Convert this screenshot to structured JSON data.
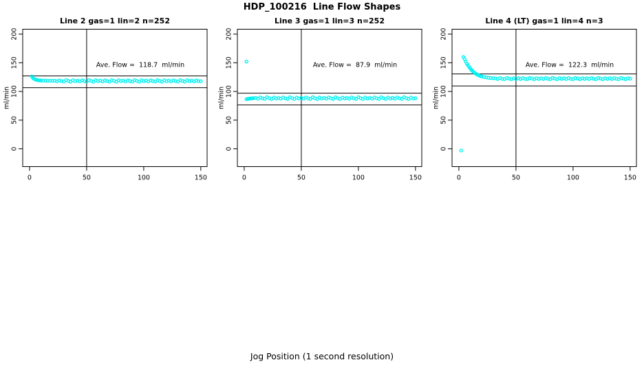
{
  "page_title": "HDP_100216  Line Flow Shapes",
  "x_axis_label": "Jog Position (1 second resolution)",
  "colors": {
    "points": "#00F2F2",
    "axis": "#000000",
    "background": "#FFFFFF"
  },
  "chart_data": [
    {
      "type": "scatter",
      "title": "Line 2 gas=1 lin=2 n=252",
      "annotation": "Ave. Flow =  118.7  ml/min",
      "ave_flow_ml_min": 118.7,
      "n": 252,
      "ylabel": "ml/min",
      "x_ticks": [
        0,
        50,
        100,
        150
      ],
      "y_ticks": [
        0,
        50,
        100,
        150,
        200
      ],
      "xlim": [
        -6,
        155.5
      ],
      "ylim": [
        -31,
        208.5
      ],
      "grid": false,
      "vline_x": 50,
      "ref_lines": [
        127,
        106.5
      ],
      "points": [
        [
          2,
          126
        ],
        [
          3,
          123.5
        ],
        [
          4,
          121.8
        ],
        [
          5,
          121
        ],
        [
          6,
          120.3
        ],
        [
          7,
          119.9
        ],
        [
          8,
          119.4
        ],
        [
          9,
          119.2
        ],
        [
          10,
          119
        ],
        [
          12,
          118.8
        ],
        [
          14,
          118.9
        ],
        [
          16,
          118.6
        ],
        [
          18,
          118.8
        ],
        [
          20,
          118.5
        ],
        [
          22,
          118.9
        ],
        [
          24,
          117.6
        ],
        [
          26,
          119.3
        ],
        [
          28,
          118.1
        ],
        [
          30,
          117.2
        ],
        [
          32,
          119.8
        ],
        [
          34,
          118.4
        ],
        [
          36,
          116.9
        ],
        [
          38,
          119.6
        ],
        [
          40,
          118
        ],
        [
          42,
          118.9
        ],
        [
          44,
          117.6
        ],
        [
          46,
          119.3
        ],
        [
          48,
          118.1
        ],
        [
          50,
          117.2
        ],
        [
          52,
          119.8
        ],
        [
          54,
          118.4
        ],
        [
          56,
          116.9
        ],
        [
          58,
          119.6
        ],
        [
          60,
          118
        ],
        [
          62,
          118.9
        ],
        [
          64,
          117.6
        ],
        [
          66,
          119.3
        ],
        [
          68,
          118.1
        ],
        [
          70,
          117.2
        ],
        [
          72,
          119.8
        ],
        [
          74,
          118.4
        ],
        [
          76,
          116.9
        ],
        [
          78,
          119.6
        ],
        [
          80,
          118
        ],
        [
          82,
          118.9
        ],
        [
          84,
          117.6
        ],
        [
          86,
          119.3
        ],
        [
          88,
          118.1
        ],
        [
          90,
          117.2
        ],
        [
          92,
          119.8
        ],
        [
          94,
          118.4
        ],
        [
          96,
          116.9
        ],
        [
          98,
          119.6
        ],
        [
          100,
          118
        ],
        [
          102,
          118.9
        ],
        [
          104,
          117.6
        ],
        [
          106,
          119.3
        ],
        [
          108,
          118.1
        ],
        [
          110,
          117.2
        ],
        [
          112,
          119.8
        ],
        [
          114,
          118.4
        ],
        [
          116,
          116.9
        ],
        [
          118,
          119.6
        ],
        [
          120,
          118
        ],
        [
          122,
          118.9
        ],
        [
          124,
          117.6
        ],
        [
          126,
          119.3
        ],
        [
          128,
          118.1
        ],
        [
          130,
          117.2
        ],
        [
          132,
          119.8
        ],
        [
          134,
          118.4
        ],
        [
          136,
          116.9
        ],
        [
          138,
          119.6
        ],
        [
          140,
          118
        ],
        [
          142,
          118.9
        ],
        [
          144,
          117.6
        ],
        [
          146,
          119.3
        ],
        [
          148,
          118.1
        ],
        [
          150,
          117.8
        ]
      ]
    },
    {
      "type": "scatter",
      "title": "Line 3 gas=1 lin=3 n=252",
      "annotation": "Ave. Flow =  87.9  ml/min",
      "ave_flow_ml_min": 87.9,
      "n": 252,
      "ylabel": "ml/min",
      "x_ticks": [
        0,
        50,
        100,
        150
      ],
      "y_ticks": [
        0,
        50,
        100,
        150,
        200
      ],
      "xlim": [
        -6,
        155.5
      ],
      "ylim": [
        -31,
        208.5
      ],
      "grid": false,
      "vline_x": 50,
      "ref_lines": [
        97,
        76.5
      ],
      "points": [
        [
          2,
          152
        ],
        [
          2,
          86.5
        ],
        [
          3,
          87
        ],
        [
          4,
          87.3
        ],
        [
          5,
          87.6
        ],
        [
          6,
          87.8
        ],
        [
          7,
          88
        ],
        [
          8,
          88.1
        ],
        [
          10,
          88.8
        ],
        [
          12,
          87.4
        ],
        [
          14,
          89.6
        ],
        [
          16,
          88
        ],
        [
          18,
          86.9
        ],
        [
          20,
          89.9
        ],
        [
          22,
          88.3
        ],
        [
          24,
          86.8
        ],
        [
          26,
          89.4
        ],
        [
          28,
          87.7
        ],
        [
          30,
          88.8
        ],
        [
          32,
          87.4
        ],
        [
          34,
          89.6
        ],
        [
          36,
          88
        ],
        [
          38,
          86.9
        ],
        [
          40,
          89.9
        ],
        [
          42,
          88.3
        ],
        [
          44,
          86.8
        ],
        [
          46,
          89.4
        ],
        [
          48,
          87.7
        ],
        [
          50,
          88.8
        ],
        [
          52,
          87.4
        ],
        [
          54,
          89.6
        ],
        [
          56,
          88
        ],
        [
          58,
          86.9
        ],
        [
          60,
          89.9
        ],
        [
          62,
          88.3
        ],
        [
          64,
          86.8
        ],
        [
          66,
          89.4
        ],
        [
          68,
          87.7
        ],
        [
          70,
          88.8
        ],
        [
          72,
          87.4
        ],
        [
          74,
          89.6
        ],
        [
          76,
          88
        ],
        [
          78,
          86.9
        ],
        [
          80,
          89.9
        ],
        [
          82,
          88.3
        ],
        [
          84,
          86.8
        ],
        [
          86,
          89.4
        ],
        [
          88,
          87.7
        ],
        [
          90,
          88.8
        ],
        [
          92,
          87.4
        ],
        [
          94,
          89.6
        ],
        [
          96,
          88
        ],
        [
          98,
          86.9
        ],
        [
          100,
          89.9
        ],
        [
          102,
          88.3
        ],
        [
          104,
          86.8
        ],
        [
          106,
          89.4
        ],
        [
          108,
          87.7
        ],
        [
          110,
          88.8
        ],
        [
          112,
          87.4
        ],
        [
          114,
          89.6
        ],
        [
          116,
          88
        ],
        [
          118,
          86.9
        ],
        [
          120,
          89.9
        ],
        [
          122,
          88.3
        ],
        [
          124,
          86.8
        ],
        [
          126,
          89.4
        ],
        [
          128,
          87.7
        ],
        [
          130,
          88.8
        ],
        [
          132,
          87.4
        ],
        [
          134,
          89.6
        ],
        [
          136,
          88
        ],
        [
          138,
          86.9
        ],
        [
          140,
          89.9
        ],
        [
          142,
          88.3
        ],
        [
          144,
          86.8
        ],
        [
          146,
          89.4
        ],
        [
          148,
          87.7
        ],
        [
          150,
          88.2
        ]
      ]
    },
    {
      "type": "scatter",
      "title": "Line 4 (LT) gas=1 lin=4 n=3",
      "annotation": "Ave. Flow =  122.3  ml/min",
      "ave_flow_ml_min": 122.3,
      "n": 3,
      "ylabel": "ml/min",
      "x_ticks": [
        0,
        50,
        100,
        150
      ],
      "y_ticks": [
        0,
        50,
        100,
        150,
        200
      ],
      "xlim": [
        -6,
        155.5
      ],
      "ylim": [
        -31,
        208.5
      ],
      "grid": false,
      "vline_x": 50,
      "ref_lines": [
        130.5,
        109.5
      ],
      "points": [
        [
          2,
          -3
        ],
        [
          4,
          160
        ],
        [
          5,
          156.5
        ],
        [
          6,
          152
        ],
        [
          7,
          148
        ],
        [
          8,
          145.5
        ],
        [
          9,
          142.5
        ],
        [
          10,
          140
        ],
        [
          11,
          137.5
        ],
        [
          12,
          135.5
        ],
        [
          13,
          133.6
        ],
        [
          14,
          132
        ],
        [
          15,
          130.7
        ],
        [
          16,
          129.5
        ],
        [
          17,
          128.4
        ],
        [
          18,
          127.5
        ],
        [
          19,
          126.8
        ],
        [
          20,
          126.2
        ],
        [
          22,
          125.2
        ],
        [
          24,
          124.4
        ],
        [
          26,
          123.8
        ],
        [
          28,
          123.4
        ],
        [
          30,
          123.1
        ],
        [
          32,
          122.9
        ],
        [
          34,
          121.7
        ],
        [
          36,
          123.3
        ],
        [
          38,
          122.1
        ],
        [
          40,
          121.5
        ],
        [
          42,
          123.5
        ],
        [
          44,
          122.5
        ],
        [
          46,
          121.3
        ],
        [
          48,
          123.1
        ],
        [
          50,
          121.9
        ],
        [
          52,
          122.9
        ],
        [
          54,
          121.7
        ],
        [
          56,
          123.3
        ],
        [
          58,
          122.1
        ],
        [
          60,
          121.5
        ],
        [
          62,
          123.5
        ],
        [
          64,
          122.5
        ],
        [
          66,
          121.3
        ],
        [
          68,
          123.1
        ],
        [
          70,
          121.9
        ],
        [
          72,
          122.9
        ],
        [
          74,
          121.7
        ],
        [
          76,
          123.3
        ],
        [
          78,
          122.1
        ],
        [
          80,
          121.5
        ],
        [
          82,
          123.5
        ],
        [
          84,
          122.5
        ],
        [
          86,
          121.3
        ],
        [
          88,
          123.1
        ],
        [
          90,
          121.9
        ],
        [
          92,
          122.9
        ],
        [
          94,
          121.7
        ],
        [
          96,
          123.3
        ],
        [
          98,
          122.1
        ],
        [
          100,
          121.5
        ],
        [
          102,
          123.5
        ],
        [
          104,
          122.5
        ],
        [
          106,
          121.3
        ],
        [
          108,
          123.1
        ],
        [
          110,
          121.9
        ],
        [
          112,
          122.9
        ],
        [
          114,
          121.7
        ],
        [
          116,
          123.3
        ],
        [
          118,
          122.1
        ],
        [
          120,
          121.5
        ],
        [
          122,
          123.5
        ],
        [
          124,
          122.5
        ],
        [
          126,
          121.3
        ],
        [
          128,
          123.1
        ],
        [
          130,
          121.9
        ],
        [
          132,
          122.9
        ],
        [
          134,
          121.7
        ],
        [
          136,
          123.3
        ],
        [
          138,
          122.1
        ],
        [
          140,
          121.5
        ],
        [
          142,
          123.5
        ],
        [
          144,
          122.5
        ],
        [
          146,
          121.3
        ],
        [
          148,
          123.1
        ],
        [
          150,
          122.3
        ]
      ]
    }
  ]
}
